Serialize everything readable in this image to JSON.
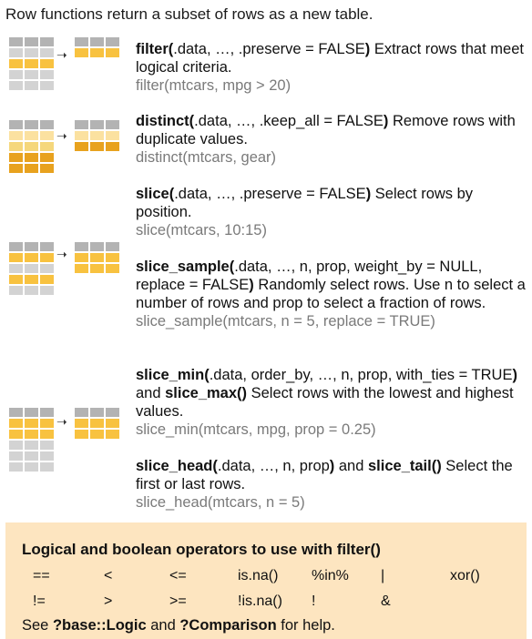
{
  "intro": "Row functions return a subset of rows as a new table.",
  "entries": [
    {
      "fn": "filter(",
      "args": ".data, …, .preserve = FALSE",
      "close": ")",
      "desc_after": " Extract rows that meet logical criteria.",
      "example": "filter(mtcars, mpg > 20)"
    },
    {
      "fn": "distinct(",
      "args": ".data, …, .keep_all = FALSE",
      "close": ")",
      "desc_after": " Remove rows with duplicate values.",
      "example": "distinct(mtcars, gear)"
    },
    {
      "fn": "slice(",
      "args": ".data, …, .preserve = FALSE",
      "close": ")",
      "desc_after": " Select rows by position.",
      "example": "slice(mtcars, 10:15)"
    },
    {
      "fn": "slice_sample(",
      "args": ".data, …, n, prop, weight_by = NULL, replace = FALSE",
      "close": ")",
      "desc_after": " Randomly select rows. Use n to select a number of rows and prop to select a fraction of rows.",
      "example": "slice_sample(mtcars, n = 5, replace = TRUE)"
    },
    {
      "fn": "slice_min(",
      "args": ".data, order_by, …, n, prop, with_ties = TRUE",
      "close": ")",
      "mid": " and ",
      "fn2": "slice_max()",
      "desc_after": " Select rows with the lowest and highest values.",
      "example": "slice_min(mtcars, mpg, prop = 0.25)"
    },
    {
      "fn": "slice_head(",
      "args": ".data, …, n, prop",
      "close": ")",
      "mid": " and ",
      "fn2": "slice_tail()",
      "desc_after": " Select the first or last rows.",
      "example": "slice_head(mtcars, n = 5)"
    }
  ],
  "operators": {
    "title": "Logical and boolean operators to use with filter()",
    "row1": [
      "==",
      "<",
      "<=",
      "is.na()",
      "%in%",
      "|",
      "xor()"
    ],
    "row2": [
      "!=",
      ">",
      ">=",
      "!is.na()",
      "!",
      "&"
    ],
    "help_prefix": "See ",
    "help_ref1": "?base::Logic",
    "help_mid": " and ",
    "help_ref2": "?Comparison",
    "help_suffix": " for help."
  },
  "colors": {
    "grey": "#b3b3b3",
    "light_grey": "#d3d3d3",
    "yellow": "#f8c240",
    "dark_yellow": "#e8a21e",
    "box_bg": "#fde5c0"
  },
  "icons": [
    "arrow-right-icon"
  ]
}
